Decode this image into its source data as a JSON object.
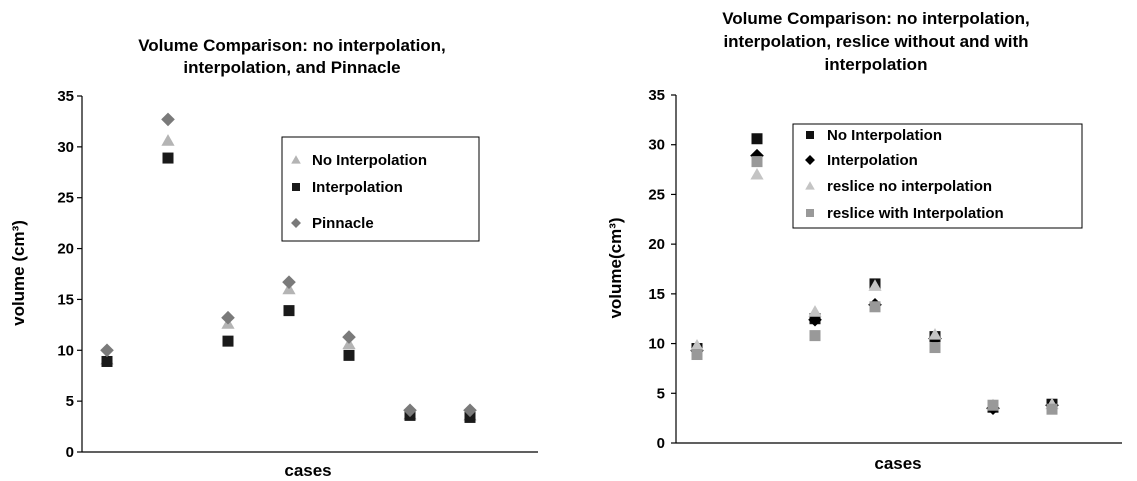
{
  "chart_data": [
    {
      "type": "scatter",
      "title_lines": [
        "Volume Comparison: no interpolation,",
        "interpolation, and Pinnacle"
      ],
      "xlabel": "cases",
      "ylabel": "volume (cm³)",
      "ylim": [
        0,
        35
      ],
      "yticks": [
        0,
        5,
        10,
        15,
        20,
        25,
        30,
        35
      ],
      "grid": false,
      "legend_position": "top-right",
      "x": [
        1,
        2,
        3,
        4,
        5,
        6,
        7
      ],
      "series": [
        {
          "name": "No Interpolation",
          "marker": "triangle",
          "color": "#b4b4b4",
          "values": [
            9.1,
            30.6,
            12.6,
            16.0,
            10.6,
            3.7,
            3.6
          ]
        },
        {
          "name": "Interpolation",
          "marker": "square",
          "color": "#1a1a1a",
          "values": [
            8.9,
            28.9,
            10.9,
            13.9,
            9.5,
            3.6,
            3.4
          ]
        },
        {
          "name": "Pinnacle",
          "marker": "diamond",
          "color": "#7a7a7a",
          "values": [
            10.0,
            32.7,
            13.2,
            16.7,
            11.3,
            4.1,
            4.1
          ]
        }
      ]
    },
    {
      "type": "scatter",
      "title_lines": [
        "Volume Comparison: no interpolation,",
        "interpolation, reslice without and with",
        "interpolation"
      ],
      "xlabel": "cases",
      "ylabel": "volume(cm³)",
      "ylim": [
        0,
        35
      ],
      "yticks": [
        0,
        5,
        10,
        15,
        20,
        25,
        30,
        35
      ],
      "grid": false,
      "legend_position": "top-right",
      "x": [
        1,
        2,
        3,
        4,
        5,
        6,
        7
      ],
      "series": [
        {
          "name": "No Interpolation",
          "marker": "square",
          "color": "#111111",
          "values": [
            9.5,
            30.6,
            12.5,
            16.0,
            10.7,
            3.6,
            3.9
          ]
        },
        {
          "name": "Interpolation",
          "marker": "diamond",
          "color": "#000000",
          "values": [
            9.3,
            28.9,
            12.4,
            13.9,
            10.5,
            3.5,
            3.8
          ]
        },
        {
          "name": "reslice no interpolation",
          "marker": "triangle",
          "color": "#c4c4c4",
          "values": [
            9.8,
            27.0,
            13.2,
            15.8,
            10.9,
            3.8,
            3.9
          ]
        },
        {
          "name": "reslice with Interpolation",
          "marker": "square",
          "color": "#999999",
          "values": [
            8.9,
            28.3,
            10.8,
            13.7,
            9.6,
            3.8,
            3.4
          ]
        }
      ]
    }
  ]
}
